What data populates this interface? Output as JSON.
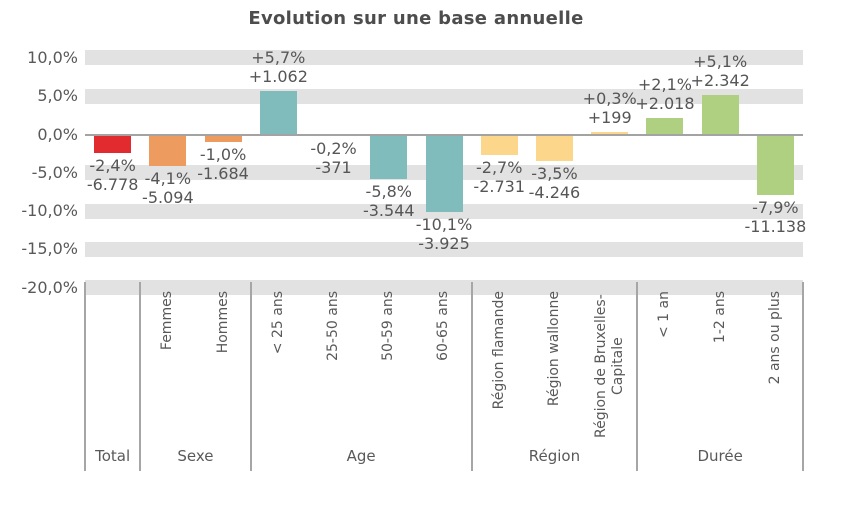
{
  "title": "Evolution sur une base annuelle",
  "style_colors": {
    "gridline_band": "#e2e2e2",
    "zero_axis_line": "#a3a3a3",
    "group_separator": "#a6a6a6",
    "text": "#595959",
    "title_text": "#4d4d4d"
  },
  "chart_data": {
    "type": "bar",
    "title": "Evolution sur une base annuelle",
    "xlabel": "",
    "ylabel": "",
    "grid": "horizontal-bands-at-5pct-ticks",
    "legend": "none",
    "value_format": "percent change + absolute change, French notation",
    "y_axis": {
      "min": -20,
      "max": 10,
      "step": 5,
      "tick_values": [
        10,
        5,
        0,
        -5,
        -10,
        -15,
        -20
      ],
      "tick_labels": [
        "10,0%",
        "5,0%",
        "0,0%",
        "-5,0%",
        "-10,0%",
        "-15,0%",
        "-20,0%"
      ]
    },
    "groups": [
      {
        "label": "Total",
        "color": "#e22b2f",
        "bars": [
          {
            "category": "",
            "pct": -2.4,
            "pct_label": "-2,4%",
            "abs_label": "-6.778"
          }
        ]
      },
      {
        "label": "Sexe",
        "color": "#ee9b5f",
        "bars": [
          {
            "category": "Femmes",
            "pct": -4.1,
            "pct_label": "-4,1%",
            "abs_label": "-5.094"
          },
          {
            "category": "Hommes",
            "pct": -1.0,
            "pct_label": "-1,0%",
            "abs_label": "-1.684"
          }
        ]
      },
      {
        "label": "Age",
        "color": "#81bcbd",
        "bars": [
          {
            "category": "< 25 ans",
            "pct": 5.7,
            "pct_label": "+5,7%",
            "abs_label": "+1.062"
          },
          {
            "category": "25-50 ans",
            "pct": -0.2,
            "pct_label": "-0,2%",
            "abs_label": "-371"
          },
          {
            "category": "50-59 ans",
            "pct": -5.8,
            "pct_label": "-5,8%",
            "abs_label": "-3.544"
          },
          {
            "category": "60-65 ans",
            "pct": -10.1,
            "pct_label": "-10,1%",
            "abs_label": "-3.925"
          }
        ]
      },
      {
        "label": "Région",
        "color": "#fcd68a",
        "bars": [
          {
            "category": "Région flamande",
            "pct": -2.7,
            "pct_label": "-2,7%",
            "abs_label": "-2.731"
          },
          {
            "category": "Région wallonne",
            "pct": -3.5,
            "pct_label": "-3,5%",
            "abs_label": "-4.246"
          },
          {
            "category": "Région de Bruxelles-Capitale",
            "pct": 0.3,
            "pct_label": "+0,3%",
            "abs_label": "+199"
          }
        ]
      },
      {
        "label": "Durée",
        "color": "#aed080",
        "bars": [
          {
            "category": "< 1 an",
            "pct": 2.1,
            "pct_label": "+2,1%",
            "abs_label": "+2.018"
          },
          {
            "category": "1-2 ans",
            "pct": 5.1,
            "pct_label": "+5,1%",
            "abs_label": "+2.342"
          },
          {
            "category": "2 ans ou plus",
            "pct": -7.9,
            "pct_label": "-7,9%",
            "abs_label": "-11.138"
          }
        ]
      }
    ]
  }
}
